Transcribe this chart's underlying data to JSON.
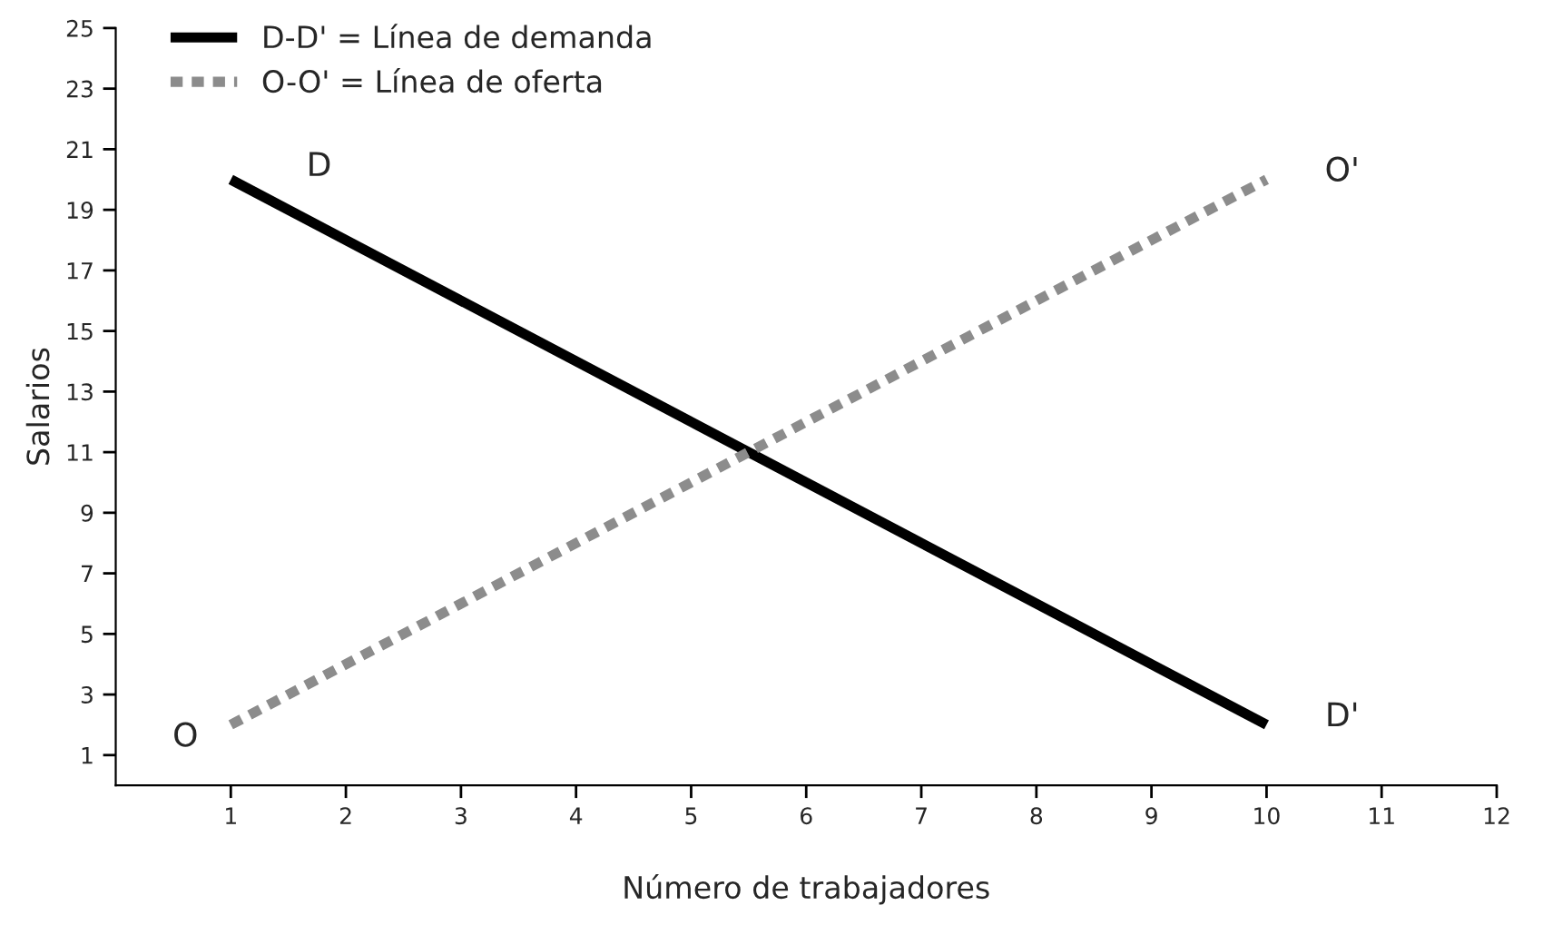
{
  "chart_data": {
    "type": "line",
    "xlabel": "Número de trabajadores",
    "ylabel": "Salarios",
    "x": [
      1,
      10
    ],
    "series": [
      {
        "name": "D-D' = Línea de demanda",
        "color": "#000000",
        "values": [
          20,
          2
        ],
        "line_style": "solid"
      },
      {
        "name": "O-O' = Línea de oferta",
        "color": "#8c8c8c",
        "values": [
          2,
          20
        ],
        "line_style": "dashed"
      }
    ],
    "xlim": [
      0,
      12
    ],
    "xticks": [
      1,
      2,
      3,
      4,
      5,
      6,
      7,
      8,
      9,
      10,
      11,
      12
    ],
    "ylim": [
      0,
      25
    ],
    "yticks": [
      1,
      3,
      5,
      7,
      9,
      11,
      13,
      15,
      17,
      19,
      21,
      23,
      25
    ],
    "grid": false,
    "legend": "top left",
    "marker": "none",
    "annotations": [
      "D",
      "D'",
      "O",
      "O'"
    ]
  }
}
